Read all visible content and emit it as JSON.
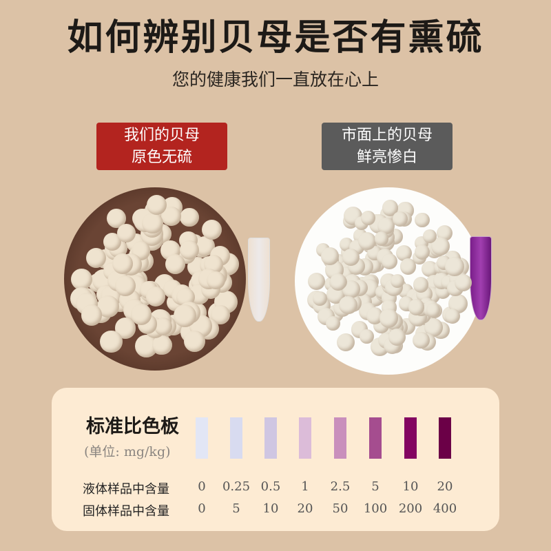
{
  "title": "如何辨别贝母是否有熏硫",
  "subtitle": "您的健康我们一直放在心上",
  "left_tag": {
    "line1": "我们的贝母",
    "line2": "原色无硫",
    "color": "#b3241f"
  },
  "right_tag": {
    "line1": "市面上的贝母",
    "line2": "鲜亮惨白",
    "color": "#5b5b5b"
  },
  "chart": {
    "title": "标准比色板",
    "unit": "(单位: mg/kg)",
    "liquid_label": "液体样品中含量",
    "solid_label": "固体样品中含量",
    "swatches": [
      {
        "color": "#e2e6f5",
        "liquid": "0",
        "solid": "0"
      },
      {
        "color": "#d8dbf0",
        "liquid": "0.25",
        "solid": "5"
      },
      {
        "color": "#cfc6e2",
        "liquid": "0.5",
        "solid": "10"
      },
      {
        "color": "#dcbcd9",
        "liquid": "1",
        "solid": "20"
      },
      {
        "color": "#c98fbc",
        "liquid": "2.5",
        "solid": "50"
      },
      {
        "color": "#a54d8f",
        "liquid": "5",
        "solid": "100"
      },
      {
        "color": "#830561",
        "liquid": "10",
        "solid": "200"
      },
      {
        "color": "#6b0047",
        "liquid": "20",
        "solid": "400"
      }
    ]
  }
}
